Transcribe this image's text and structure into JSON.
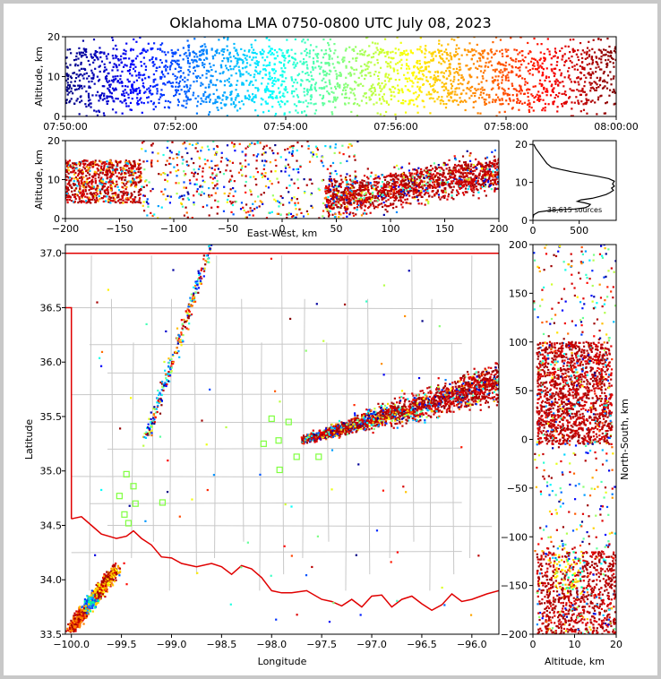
{
  "title": "Oklahoma LMA 0750-0800 UTC July 08, 2023",
  "chart_data": [
    {
      "id": "time-altitude",
      "type": "scatter",
      "ylabel": "Altitude, km",
      "ylim": [
        0,
        20
      ],
      "yticks": [
        0,
        10,
        20
      ],
      "xlim_seconds_after_0750": [
        0,
        600
      ],
      "xticks": [
        "07:50:00",
        "07:52:00",
        "07:54:00",
        "07:56:00",
        "07:58:00",
        "08:00:00"
      ],
      "color_encoding": "jet colormap by time"
    },
    {
      "id": "ew-altitude",
      "type": "scatter",
      "xlabel": "East-West, km",
      "ylabel": "Altitude, km",
      "xlim": [
        -200,
        200
      ],
      "xticks": [
        -200,
        -150,
        -100,
        -50,
        0,
        50,
        100,
        150,
        200
      ],
      "ylim": [
        0,
        20
      ],
      "yticks": [
        0,
        10,
        20
      ]
    },
    {
      "id": "altitude-histogram",
      "type": "line",
      "xlim": [
        0,
        900
      ],
      "xticks": [
        0,
        500
      ],
      "ylim": [
        0,
        21
      ],
      "yticks": [
        0,
        10,
        20
      ],
      "annotation": "38,615 sources",
      "profile": [
        [
          0,
          0.6
        ],
        [
          10,
          1.5
        ],
        [
          60,
          2.2
        ],
        [
          150,
          2.5
        ],
        [
          300,
          2.8
        ],
        [
          450,
          3.0
        ],
        [
          560,
          3.3
        ],
        [
          600,
          3.7
        ],
        [
          620,
          4.2
        ],
        [
          560,
          4.6
        ],
        [
          480,
          5.0
        ],
        [
          520,
          5.4
        ],
        [
          640,
          5.8
        ],
        [
          720,
          6.3
        ],
        [
          790,
          6.8
        ],
        [
          830,
          7.3
        ],
        [
          870,
          7.9
        ],
        [
          850,
          8.5
        ],
        [
          880,
          9.0
        ],
        [
          860,
          9.6
        ],
        [
          880,
          10.3
        ],
        [
          820,
          11.0
        ],
        [
          700,
          11.6
        ],
        [
          560,
          12.2
        ],
        [
          420,
          12.8
        ],
        [
          300,
          13.4
        ],
        [
          200,
          14.0
        ],
        [
          150,
          15.0
        ],
        [
          120,
          16.0
        ],
        [
          90,
          17.0
        ],
        [
          60,
          18.0
        ],
        [
          30,
          19.0
        ],
        [
          10,
          20.0
        ]
      ]
    },
    {
      "id": "plan-view",
      "type": "scatter",
      "xlabel": "Longitude",
      "ylabel": "Latitude",
      "xlim": [
        -100.06,
        -95.73
      ],
      "xticks": [
        -100.0,
        -99.5,
        -99.0,
        -98.5,
        -98.0,
        -97.5,
        -97.0,
        -96.5,
        -96.0
      ],
      "xtick_labels": [
        "−100.0",
        "−99.5",
        "−99.0",
        "−98.5",
        "−98.0",
        "−97.5",
        "−97.0",
        "−96.5",
        "−96.0"
      ],
      "ylim": [
        33.5,
        37.08
      ],
      "yticks": [
        33.5,
        34.0,
        34.5,
        35.0,
        35.5,
        36.0,
        36.5,
        37.0
      ],
      "ytick_labels": [
        "33.5",
        "34.0",
        "34.5",
        "35.0",
        "35.5",
        "36.0",
        "36.5",
        "37.0"
      ],
      "stations": [
        [
          -99.45,
          34.97
        ],
        [
          -99.52,
          34.77
        ],
        [
          -99.38,
          34.86
        ],
        [
          -99.36,
          34.7
        ],
        [
          -99.47,
          34.6
        ],
        [
          -99.43,
          34.52
        ],
        [
          -99.09,
          34.71
        ],
        [
          -98.0,
          35.48
        ],
        [
          -97.83,
          35.45
        ],
        [
          -98.08,
          35.25
        ],
        [
          -97.93,
          35.28
        ],
        [
          -97.75,
          35.13
        ],
        [
          -97.53,
          35.13
        ],
        [
          -97.92,
          35.01
        ]
      ],
      "station_color": "#7fff3f"
    },
    {
      "id": "ns-altitude",
      "type": "scatter",
      "xlabel": "Altitude, km",
      "ylabel": "North-South, km",
      "xlim": [
        0,
        20
      ],
      "xticks": [
        0,
        10,
        20
      ],
      "ylim": [
        -200,
        200
      ],
      "yticks": [
        -200,
        -150,
        -100,
        -50,
        0,
        50,
        100,
        150,
        200
      ]
    }
  ]
}
